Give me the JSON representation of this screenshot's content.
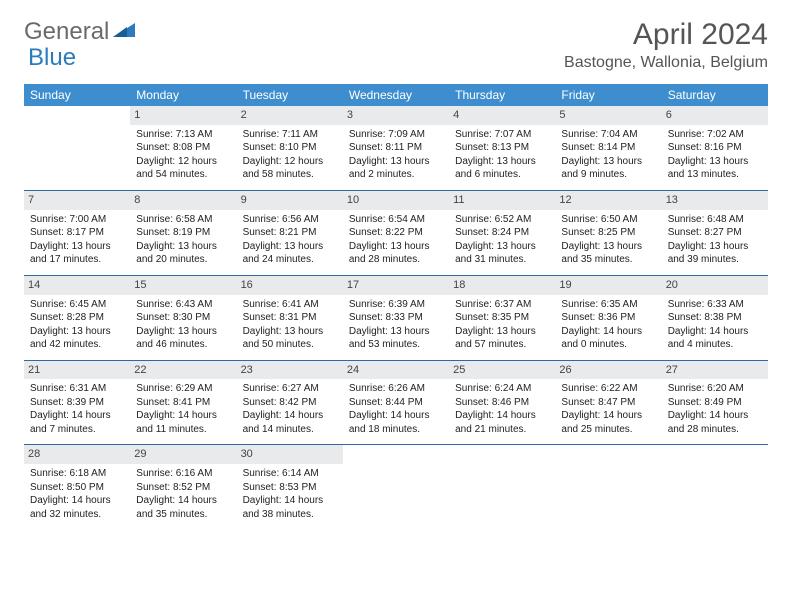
{
  "brand": {
    "part1": "General",
    "part2": "Blue"
  },
  "title": {
    "month": "April 2024",
    "location": "Bastogne, Wallonia, Belgium"
  },
  "colors": {
    "header_bg": "#3e8ecf",
    "header_text": "#ffffff",
    "daynum_bg": "#e9eaec",
    "row_border": "#2d6aa3",
    "brand_gray": "#6a6a6a",
    "brand_blue": "#2b7bbd"
  },
  "weekdays": [
    "Sunday",
    "Monday",
    "Tuesday",
    "Wednesday",
    "Thursday",
    "Friday",
    "Saturday"
  ],
  "layout": {
    "start_blanks": 1,
    "days_in_month": 30
  },
  "days": {
    "1": {
      "sunrise": "Sunrise: 7:13 AM",
      "sunset": "Sunset: 8:08 PM",
      "dl1": "Daylight: 12 hours",
      "dl2": "and 54 minutes."
    },
    "2": {
      "sunrise": "Sunrise: 7:11 AM",
      "sunset": "Sunset: 8:10 PM",
      "dl1": "Daylight: 12 hours",
      "dl2": "and 58 minutes."
    },
    "3": {
      "sunrise": "Sunrise: 7:09 AM",
      "sunset": "Sunset: 8:11 PM",
      "dl1": "Daylight: 13 hours",
      "dl2": "and 2 minutes."
    },
    "4": {
      "sunrise": "Sunrise: 7:07 AM",
      "sunset": "Sunset: 8:13 PM",
      "dl1": "Daylight: 13 hours",
      "dl2": "and 6 minutes."
    },
    "5": {
      "sunrise": "Sunrise: 7:04 AM",
      "sunset": "Sunset: 8:14 PM",
      "dl1": "Daylight: 13 hours",
      "dl2": "and 9 minutes."
    },
    "6": {
      "sunrise": "Sunrise: 7:02 AM",
      "sunset": "Sunset: 8:16 PM",
      "dl1": "Daylight: 13 hours",
      "dl2": "and 13 minutes."
    },
    "7": {
      "sunrise": "Sunrise: 7:00 AM",
      "sunset": "Sunset: 8:17 PM",
      "dl1": "Daylight: 13 hours",
      "dl2": "and 17 minutes."
    },
    "8": {
      "sunrise": "Sunrise: 6:58 AM",
      "sunset": "Sunset: 8:19 PM",
      "dl1": "Daylight: 13 hours",
      "dl2": "and 20 minutes."
    },
    "9": {
      "sunrise": "Sunrise: 6:56 AM",
      "sunset": "Sunset: 8:21 PM",
      "dl1": "Daylight: 13 hours",
      "dl2": "and 24 minutes."
    },
    "10": {
      "sunrise": "Sunrise: 6:54 AM",
      "sunset": "Sunset: 8:22 PM",
      "dl1": "Daylight: 13 hours",
      "dl2": "and 28 minutes."
    },
    "11": {
      "sunrise": "Sunrise: 6:52 AM",
      "sunset": "Sunset: 8:24 PM",
      "dl1": "Daylight: 13 hours",
      "dl2": "and 31 minutes."
    },
    "12": {
      "sunrise": "Sunrise: 6:50 AM",
      "sunset": "Sunset: 8:25 PM",
      "dl1": "Daylight: 13 hours",
      "dl2": "and 35 minutes."
    },
    "13": {
      "sunrise": "Sunrise: 6:48 AM",
      "sunset": "Sunset: 8:27 PM",
      "dl1": "Daylight: 13 hours",
      "dl2": "and 39 minutes."
    },
    "14": {
      "sunrise": "Sunrise: 6:45 AM",
      "sunset": "Sunset: 8:28 PM",
      "dl1": "Daylight: 13 hours",
      "dl2": "and 42 minutes."
    },
    "15": {
      "sunrise": "Sunrise: 6:43 AM",
      "sunset": "Sunset: 8:30 PM",
      "dl1": "Daylight: 13 hours",
      "dl2": "and 46 minutes."
    },
    "16": {
      "sunrise": "Sunrise: 6:41 AM",
      "sunset": "Sunset: 8:31 PM",
      "dl1": "Daylight: 13 hours",
      "dl2": "and 50 minutes."
    },
    "17": {
      "sunrise": "Sunrise: 6:39 AM",
      "sunset": "Sunset: 8:33 PM",
      "dl1": "Daylight: 13 hours",
      "dl2": "and 53 minutes."
    },
    "18": {
      "sunrise": "Sunrise: 6:37 AM",
      "sunset": "Sunset: 8:35 PM",
      "dl1": "Daylight: 13 hours",
      "dl2": "and 57 minutes."
    },
    "19": {
      "sunrise": "Sunrise: 6:35 AM",
      "sunset": "Sunset: 8:36 PM",
      "dl1": "Daylight: 14 hours",
      "dl2": "and 0 minutes."
    },
    "20": {
      "sunrise": "Sunrise: 6:33 AM",
      "sunset": "Sunset: 8:38 PM",
      "dl1": "Daylight: 14 hours",
      "dl2": "and 4 minutes."
    },
    "21": {
      "sunrise": "Sunrise: 6:31 AM",
      "sunset": "Sunset: 8:39 PM",
      "dl1": "Daylight: 14 hours",
      "dl2": "and 7 minutes."
    },
    "22": {
      "sunrise": "Sunrise: 6:29 AM",
      "sunset": "Sunset: 8:41 PM",
      "dl1": "Daylight: 14 hours",
      "dl2": "and 11 minutes."
    },
    "23": {
      "sunrise": "Sunrise: 6:27 AM",
      "sunset": "Sunset: 8:42 PM",
      "dl1": "Daylight: 14 hours",
      "dl2": "and 14 minutes."
    },
    "24": {
      "sunrise": "Sunrise: 6:26 AM",
      "sunset": "Sunset: 8:44 PM",
      "dl1": "Daylight: 14 hours",
      "dl2": "and 18 minutes."
    },
    "25": {
      "sunrise": "Sunrise: 6:24 AM",
      "sunset": "Sunset: 8:46 PM",
      "dl1": "Daylight: 14 hours",
      "dl2": "and 21 minutes."
    },
    "26": {
      "sunrise": "Sunrise: 6:22 AM",
      "sunset": "Sunset: 8:47 PM",
      "dl1": "Daylight: 14 hours",
      "dl2": "and 25 minutes."
    },
    "27": {
      "sunrise": "Sunrise: 6:20 AM",
      "sunset": "Sunset: 8:49 PM",
      "dl1": "Daylight: 14 hours",
      "dl2": "and 28 minutes."
    },
    "28": {
      "sunrise": "Sunrise: 6:18 AM",
      "sunset": "Sunset: 8:50 PM",
      "dl1": "Daylight: 14 hours",
      "dl2": "and 32 minutes."
    },
    "29": {
      "sunrise": "Sunrise: 6:16 AM",
      "sunset": "Sunset: 8:52 PM",
      "dl1": "Daylight: 14 hours",
      "dl2": "and 35 minutes."
    },
    "30": {
      "sunrise": "Sunrise: 6:14 AM",
      "sunset": "Sunset: 8:53 PM",
      "dl1": "Daylight: 14 hours",
      "dl2": "and 38 minutes."
    }
  }
}
